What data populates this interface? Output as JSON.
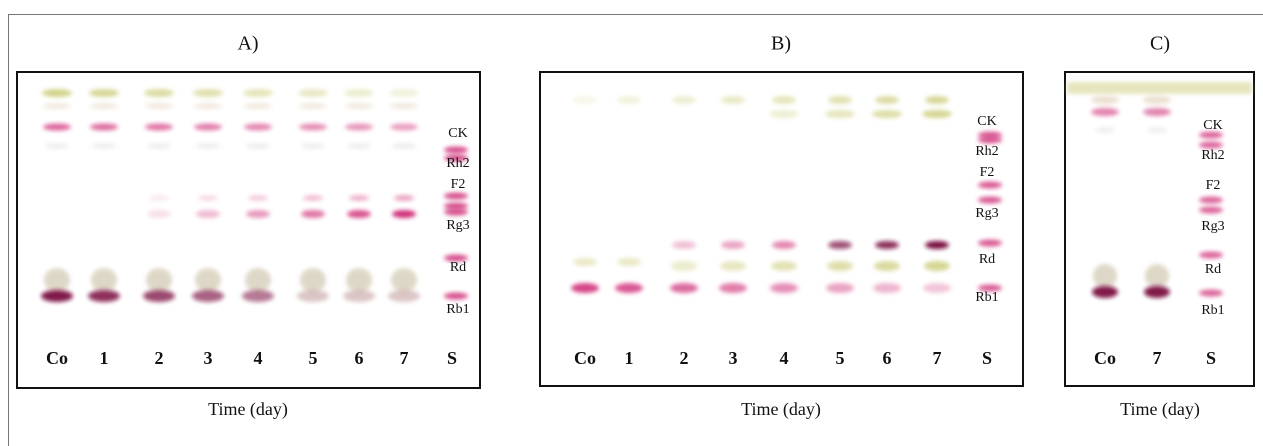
{
  "panels": [
    {
      "title": "A)",
      "lanes": [
        "Co",
        "1",
        "2",
        "3",
        "4",
        "5",
        "6",
        "7",
        "S"
      ],
      "standards": [
        "CK",
        "Rh2",
        "F2",
        "Rg3",
        "Rd",
        "Rb1"
      ],
      "xlabel": "Time (day)"
    },
    {
      "title": "B)",
      "lanes": [
        "Co",
        "1",
        "2",
        "3",
        "4",
        "5",
        "6",
        "7",
        "S"
      ],
      "standards": [
        "CK",
        "Rh2",
        "F2",
        "Rg3",
        "Rd",
        "Rb1"
      ],
      "xlabel": "Time (day)"
    },
    {
      "title": "C)",
      "lanes": [
        "Co",
        "7",
        "S"
      ],
      "standards": [
        "CK",
        "Rh2",
        "F2",
        "Rg3",
        "Rd",
        "Rb1"
      ],
      "xlabel": "Time (day)"
    }
  ]
}
